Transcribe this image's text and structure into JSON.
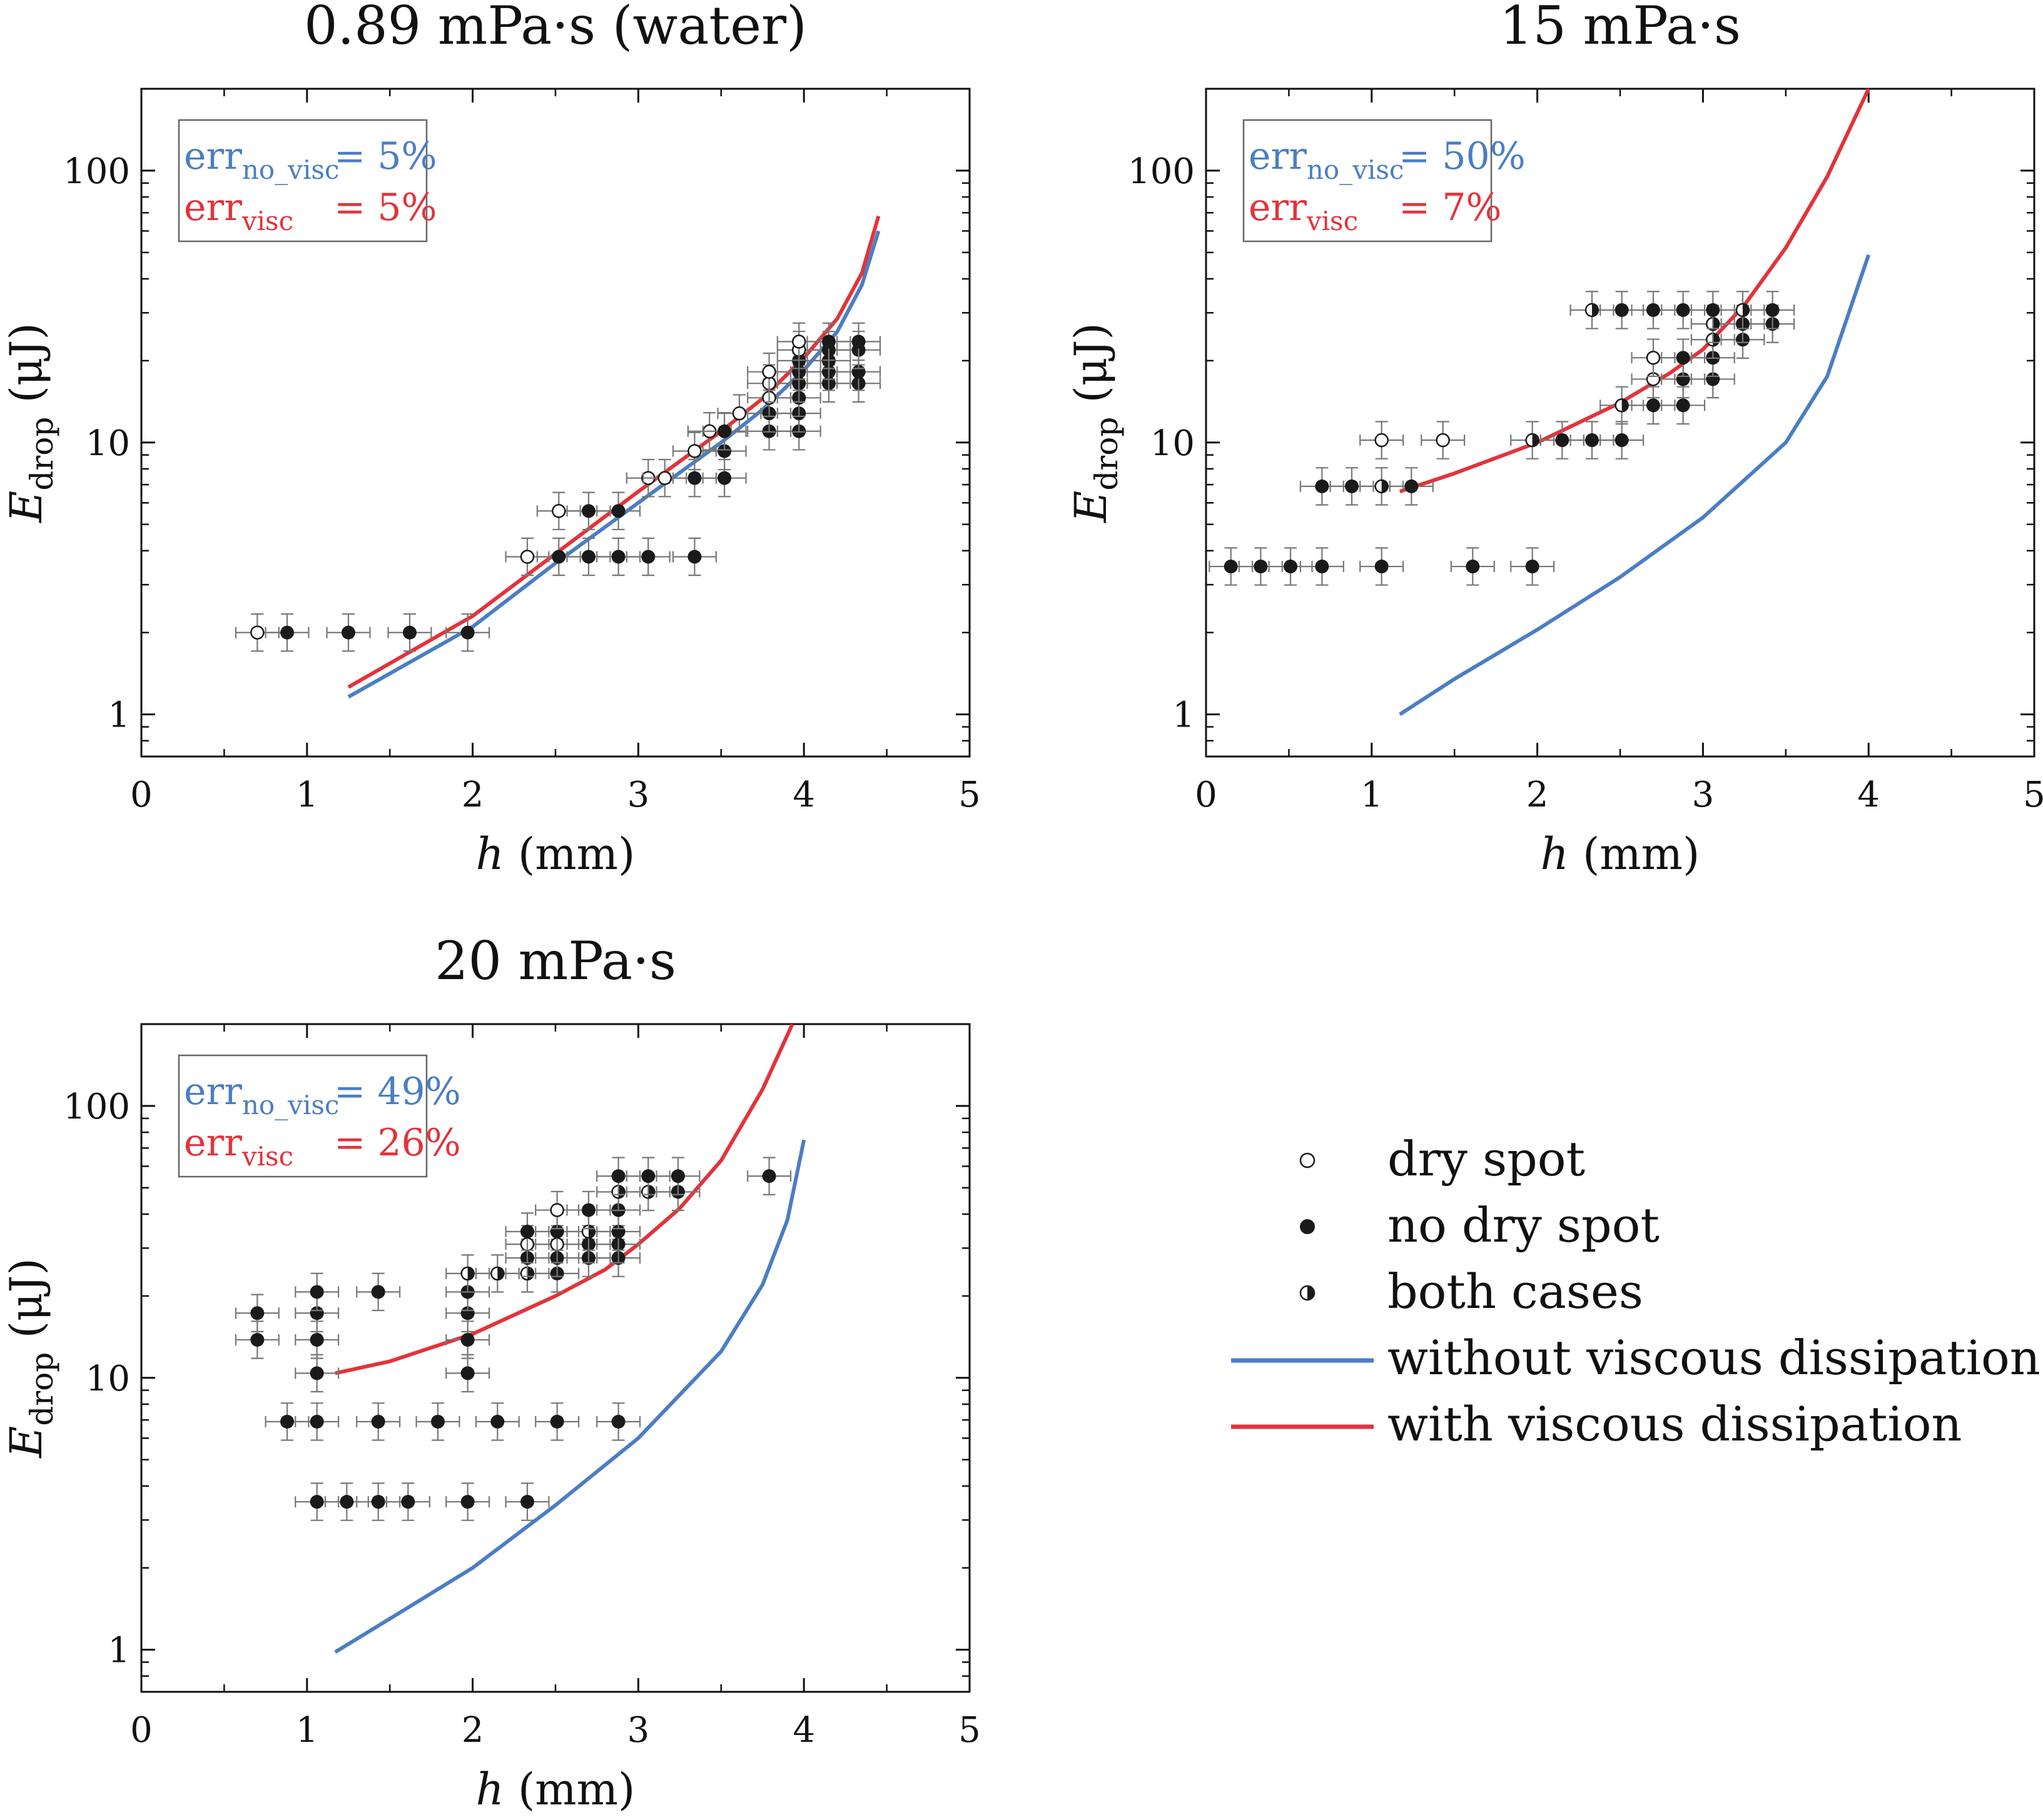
{
  "colors": {
    "blue": "#4a7ec4",
    "red": "#e3333b",
    "marker": "#1a1a1a",
    "errorbar": "#777777"
  },
  "chart_data": [
    {
      "type": "scatter",
      "title": "0.89 mPa·s (water)",
      "xlabel": {
        "main": "h",
        "unit": " (mm)"
      },
      "ylabel": {
        "main": "E",
        "sub": "drop",
        "unit": " (μJ)"
      },
      "xlim": [
        0,
        5
      ],
      "ylim": [
        0.7,
        200
      ],
      "yscale": "log",
      "xticks": [
        "0",
        "1",
        "2",
        "3",
        "4",
        "5"
      ],
      "yticks": [
        "1",
        "10",
        "100"
      ],
      "err_box": [
        {
          "base": "err",
          "sub": "no_visc",
          "value": "= 5%",
          "color": "blue"
        },
        {
          "base": "err",
          "sub": "visc",
          "value": "= 5%",
          "color": "red"
        }
      ],
      "curves": {
        "no_visc": {
          "x": [
            1.25,
            2.0,
            2.5,
            3.0,
            3.5,
            3.75,
            4.0,
            4.2,
            4.35,
            4.45
          ],
          "y": [
            1.16,
            2.1,
            3.6,
            6.0,
            10.0,
            13.2,
            18.5,
            25.5,
            38,
            60
          ]
        },
        "visc": {
          "x": [
            1.25,
            2.0,
            2.5,
            3.0,
            3.5,
            3.75,
            4.0,
            4.2,
            4.35,
            4.45
          ],
          "y": [
            1.26,
            2.3,
            3.9,
            6.6,
            11.0,
            14.5,
            20.5,
            28.5,
            42,
            68
          ]
        }
      },
      "points": [
        {
          "x": 0.7,
          "y": 2.0,
          "kind": "dry"
        },
        {
          "x": 0.88,
          "y": 2.0,
          "kind": "nodry"
        },
        {
          "x": 1.25,
          "y": 2.0,
          "kind": "nodry"
        },
        {
          "x": 1.62,
          "y": 2.0,
          "kind": "nodry"
        },
        {
          "x": 1.97,
          "y": 2.0,
          "kind": "nodry"
        },
        {
          "x": 2.33,
          "y": 3.8,
          "kind": "dry"
        },
        {
          "x": 2.52,
          "y": 3.8,
          "kind": "nodry"
        },
        {
          "x": 2.7,
          "y": 3.8,
          "kind": "nodry"
        },
        {
          "x": 2.88,
          "y": 3.8,
          "kind": "nodry"
        },
        {
          "x": 3.06,
          "y": 3.8,
          "kind": "nodry"
        },
        {
          "x": 3.34,
          "y": 3.8,
          "kind": "nodry"
        },
        {
          "x": 2.52,
          "y": 5.6,
          "kind": "dry"
        },
        {
          "x": 2.7,
          "y": 5.6,
          "kind": "nodry"
        },
        {
          "x": 2.88,
          "y": 5.6,
          "kind": "nodry"
        },
        {
          "x": 3.06,
          "y": 7.4,
          "kind": "dry"
        },
        {
          "x": 3.16,
          "y": 7.4,
          "kind": "dry"
        },
        {
          "x": 3.34,
          "y": 7.4,
          "kind": "nodry"
        },
        {
          "x": 3.52,
          "y": 7.4,
          "kind": "nodry"
        },
        {
          "x": 3.34,
          "y": 9.3,
          "kind": "dry"
        },
        {
          "x": 3.52,
          "y": 9.3,
          "kind": "nodry"
        },
        {
          "x": 3.43,
          "y": 11.0,
          "kind": "dry"
        },
        {
          "x": 3.52,
          "y": 11.0,
          "kind": "nodry"
        },
        {
          "x": 3.79,
          "y": 11.0,
          "kind": "nodry"
        },
        {
          "x": 3.97,
          "y": 11.0,
          "kind": "nodry"
        },
        {
          "x": 3.61,
          "y": 12.8,
          "kind": "dry"
        },
        {
          "x": 3.79,
          "y": 12.8,
          "kind": "nodry"
        },
        {
          "x": 3.97,
          "y": 12.8,
          "kind": "nodry"
        },
        {
          "x": 3.79,
          "y": 14.6,
          "kind": "dry"
        },
        {
          "x": 3.97,
          "y": 14.6,
          "kind": "nodry"
        },
        {
          "x": 3.79,
          "y": 16.5,
          "kind": "dry"
        },
        {
          "x": 3.97,
          "y": 16.5,
          "kind": "nodry"
        },
        {
          "x": 4.15,
          "y": 16.5,
          "kind": "nodry"
        },
        {
          "x": 4.33,
          "y": 16.5,
          "kind": "nodry"
        },
        {
          "x": 3.79,
          "y": 18.2,
          "kind": "dry"
        },
        {
          "x": 3.97,
          "y": 18.2,
          "kind": "nodry"
        },
        {
          "x": 4.15,
          "y": 18.2,
          "kind": "nodry"
        },
        {
          "x": 4.33,
          "y": 18.2,
          "kind": "nodry"
        },
        {
          "x": 3.97,
          "y": 20.0,
          "kind": "nodry"
        },
        {
          "x": 4.15,
          "y": 20.0,
          "kind": "nodry"
        },
        {
          "x": 3.97,
          "y": 21.9,
          "kind": "dry"
        },
        {
          "x": 4.15,
          "y": 21.9,
          "kind": "nodry"
        },
        {
          "x": 4.33,
          "y": 21.9,
          "kind": "nodry"
        },
        {
          "x": 3.97,
          "y": 23.5,
          "kind": "dry"
        },
        {
          "x": 4.15,
          "y": 23.5,
          "kind": "nodry"
        },
        {
          "x": 4.33,
          "y": 23.5,
          "kind": "nodry"
        }
      ]
    },
    {
      "type": "scatter",
      "title": "15 mPa·s",
      "xlabel": {
        "main": "h",
        "unit": " (mm)"
      },
      "ylabel": {
        "main": "E",
        "sub": "drop",
        "unit": " (μJ)"
      },
      "xlim": [
        0,
        5
      ],
      "ylim": [
        0.7,
        200
      ],
      "yscale": "log",
      "xticks": [
        "0",
        "1",
        "2",
        "3",
        "4",
        "5"
      ],
      "yticks": [
        "1",
        "10",
        "100"
      ],
      "err_box": [
        {
          "base": "err",
          "sub": "no_visc",
          "value": "= 50%",
          "color": "blue"
        },
        {
          "base": "err",
          "sub": "visc",
          "value": "= 7%",
          "color": "red"
        }
      ],
      "curves": {
        "no_visc": {
          "x": [
            1.17,
            1.5,
            2.0,
            2.5,
            3.0,
            3.5,
            3.75,
            4.0
          ],
          "y": [
            1.0,
            1.35,
            2.05,
            3.2,
            5.3,
            10.0,
            17.5,
            49
          ]
        },
        "visc": {
          "x": [
            1.17,
            1.5,
            2.0,
            2.5,
            2.8,
            3.0,
            3.25,
            3.5,
            3.75,
            4.0
          ],
          "y": [
            6.6,
            7.7,
            10.0,
            14.0,
            18.0,
            22.0,
            32.0,
            52.0,
            95.0,
            200
          ]
        }
      },
      "points": [
        {
          "x": 0.15,
          "y": 3.5,
          "kind": "nodry"
        },
        {
          "x": 0.33,
          "y": 3.5,
          "kind": "nodry"
        },
        {
          "x": 0.51,
          "y": 3.5,
          "kind": "nodry"
        },
        {
          "x": 0.7,
          "y": 3.5,
          "kind": "nodry"
        },
        {
          "x": 1.06,
          "y": 3.5,
          "kind": "nodry"
        },
        {
          "x": 1.61,
          "y": 3.5,
          "kind": "nodry"
        },
        {
          "x": 1.97,
          "y": 3.5,
          "kind": "nodry"
        },
        {
          "x": 0.7,
          "y": 6.9,
          "kind": "nodry"
        },
        {
          "x": 0.88,
          "y": 6.9,
          "kind": "nodry"
        },
        {
          "x": 1.06,
          "y": 6.9,
          "kind": "both"
        },
        {
          "x": 1.24,
          "y": 6.9,
          "kind": "nodry"
        },
        {
          "x": 1.06,
          "y": 10.2,
          "kind": "dry"
        },
        {
          "x": 1.43,
          "y": 10.2,
          "kind": "dry"
        },
        {
          "x": 1.97,
          "y": 10.2,
          "kind": "both"
        },
        {
          "x": 2.15,
          "y": 10.2,
          "kind": "nodry"
        },
        {
          "x": 2.33,
          "y": 10.2,
          "kind": "nodry"
        },
        {
          "x": 2.51,
          "y": 10.2,
          "kind": "nodry"
        },
        {
          "x": 2.51,
          "y": 13.7,
          "kind": "both"
        },
        {
          "x": 2.7,
          "y": 13.7,
          "kind": "nodry"
        },
        {
          "x": 2.88,
          "y": 13.7,
          "kind": "nodry"
        },
        {
          "x": 2.7,
          "y": 17.1,
          "kind": "dry"
        },
        {
          "x": 2.88,
          "y": 17.1,
          "kind": "nodry"
        },
        {
          "x": 3.06,
          "y": 17.1,
          "kind": "nodry"
        },
        {
          "x": 2.7,
          "y": 20.5,
          "kind": "dry"
        },
        {
          "x": 2.88,
          "y": 20.5,
          "kind": "nodry"
        },
        {
          "x": 3.06,
          "y": 20.5,
          "kind": "nodry"
        },
        {
          "x": 3.06,
          "y": 23.9,
          "kind": "both"
        },
        {
          "x": 3.24,
          "y": 23.9,
          "kind": "nodry"
        },
        {
          "x": 3.06,
          "y": 27.3,
          "kind": "both"
        },
        {
          "x": 3.24,
          "y": 27.3,
          "kind": "nodry"
        },
        {
          "x": 3.42,
          "y": 27.3,
          "kind": "nodry"
        },
        {
          "x": 2.33,
          "y": 30.7,
          "kind": "both"
        },
        {
          "x": 2.51,
          "y": 30.7,
          "kind": "nodry"
        },
        {
          "x": 2.7,
          "y": 30.7,
          "kind": "nodry"
        },
        {
          "x": 2.88,
          "y": 30.7,
          "kind": "nodry"
        },
        {
          "x": 3.06,
          "y": 30.7,
          "kind": "nodry"
        },
        {
          "x": 3.24,
          "y": 30.7,
          "kind": "both"
        },
        {
          "x": 3.42,
          "y": 30.7,
          "kind": "nodry"
        }
      ]
    },
    {
      "type": "scatter",
      "title": "20 mPa·s",
      "xlabel": {
        "main": "h",
        "unit": " (mm)"
      },
      "ylabel": {
        "main": "E",
        "sub": "drop",
        "unit": " (μJ)"
      },
      "xlim": [
        0,
        5
      ],
      "ylim": [
        0.7,
        200
      ],
      "yscale": "log",
      "xticks": [
        "0",
        "1",
        "2",
        "3",
        "4",
        "5"
      ],
      "yticks": [
        "1",
        "10",
        "100"
      ],
      "err_box": [
        {
          "base": "err",
          "sub": "no_visc",
          "value": "= 49%",
          "color": "blue"
        },
        {
          "base": "err",
          "sub": "visc",
          "value": "= 26%",
          "color": "red"
        }
      ],
      "curves": {
        "no_visc": {
          "x": [
            1.17,
            1.5,
            2.0,
            2.5,
            3.0,
            3.5,
            3.75,
            3.9,
            4.0
          ],
          "y": [
            0.98,
            1.3,
            2.0,
            3.4,
            6.0,
            12.5,
            22.0,
            38.0,
            75.0
          ]
        },
        "visc": {
          "x": [
            1.17,
            1.5,
            2.0,
            2.5,
            2.8,
            3.0,
            3.25,
            3.5,
            3.75,
            3.93
          ],
          "y": [
            10.4,
            11.5,
            14.5,
            20.0,
            25.0,
            31.0,
            42.0,
            63.0,
            115.0,
            200
          ]
        }
      },
      "points": [
        {
          "x": 1.06,
          "y": 3.5,
          "kind": "nodry"
        },
        {
          "x": 1.24,
          "y": 3.5,
          "kind": "nodry"
        },
        {
          "x": 1.43,
          "y": 3.5,
          "kind": "nodry"
        },
        {
          "x": 1.61,
          "y": 3.5,
          "kind": "nodry"
        },
        {
          "x": 1.97,
          "y": 3.5,
          "kind": "nodry"
        },
        {
          "x": 2.33,
          "y": 3.5,
          "kind": "nodry"
        },
        {
          "x": 0.88,
          "y": 6.9,
          "kind": "nodry"
        },
        {
          "x": 1.06,
          "y": 6.9,
          "kind": "nodry"
        },
        {
          "x": 1.43,
          "y": 6.9,
          "kind": "nodry"
        },
        {
          "x": 1.79,
          "y": 6.9,
          "kind": "nodry"
        },
        {
          "x": 2.15,
          "y": 6.9,
          "kind": "nodry"
        },
        {
          "x": 2.51,
          "y": 6.9,
          "kind": "nodry"
        },
        {
          "x": 2.88,
          "y": 6.9,
          "kind": "nodry"
        },
        {
          "x": 1.06,
          "y": 10.4,
          "kind": "nodry"
        },
        {
          "x": 1.97,
          "y": 10.4,
          "kind": "nodry"
        },
        {
          "x": 0.7,
          "y": 13.8,
          "kind": "nodry"
        },
        {
          "x": 1.06,
          "y": 13.8,
          "kind": "nodry"
        },
        {
          "x": 1.97,
          "y": 13.8,
          "kind": "nodry"
        },
        {
          "x": 0.7,
          "y": 17.3,
          "kind": "nodry"
        },
        {
          "x": 1.06,
          "y": 17.3,
          "kind": "nodry"
        },
        {
          "x": 1.97,
          "y": 17.3,
          "kind": "nodry"
        },
        {
          "x": 1.06,
          "y": 20.7,
          "kind": "nodry"
        },
        {
          "x": 1.43,
          "y": 20.7,
          "kind": "nodry"
        },
        {
          "x": 1.97,
          "y": 20.7,
          "kind": "nodry"
        },
        {
          "x": 1.97,
          "y": 24.2,
          "kind": "both"
        },
        {
          "x": 2.15,
          "y": 24.2,
          "kind": "both"
        },
        {
          "x": 2.33,
          "y": 24.2,
          "kind": "both"
        },
        {
          "x": 2.51,
          "y": 24.2,
          "kind": "nodry"
        },
        {
          "x": 2.33,
          "y": 27.6,
          "kind": "nodry"
        },
        {
          "x": 2.51,
          "y": 27.6,
          "kind": "nodry"
        },
        {
          "x": 2.7,
          "y": 27.6,
          "kind": "nodry"
        },
        {
          "x": 2.88,
          "y": 27.6,
          "kind": "nodry"
        },
        {
          "x": 2.33,
          "y": 31.0,
          "kind": "dry"
        },
        {
          "x": 2.51,
          "y": 31.0,
          "kind": "dry"
        },
        {
          "x": 2.7,
          "y": 31.0,
          "kind": "nodry"
        },
        {
          "x": 2.88,
          "y": 31.0,
          "kind": "nodry"
        },
        {
          "x": 2.33,
          "y": 34.5,
          "kind": "nodry"
        },
        {
          "x": 2.51,
          "y": 34.5,
          "kind": "nodry"
        },
        {
          "x": 2.7,
          "y": 34.5,
          "kind": "both"
        },
        {
          "x": 2.88,
          "y": 34.5,
          "kind": "nodry"
        },
        {
          "x": 2.51,
          "y": 41.4,
          "kind": "dry"
        },
        {
          "x": 2.7,
          "y": 41.4,
          "kind": "nodry"
        },
        {
          "x": 2.88,
          "y": 41.4,
          "kind": "nodry"
        },
        {
          "x": 2.88,
          "y": 48.3,
          "kind": "both"
        },
        {
          "x": 3.06,
          "y": 48.3,
          "kind": "both"
        },
        {
          "x": 3.24,
          "y": 48.3,
          "kind": "nodry"
        },
        {
          "x": 2.88,
          "y": 55.2,
          "kind": "nodry"
        },
        {
          "x": 3.06,
          "y": 55.2,
          "kind": "nodry"
        },
        {
          "x": 3.24,
          "y": 55.2,
          "kind": "nodry"
        },
        {
          "x": 3.79,
          "y": 55.2,
          "kind": "nodry"
        }
      ]
    }
  ],
  "legend": [
    {
      "label": "dry spot",
      "kind": "dry"
    },
    {
      "label": "no dry spot",
      "kind": "nodry"
    },
    {
      "label": "both cases",
      "kind": "both"
    },
    {
      "label": "without viscous dissipation",
      "kind": "line",
      "color": "blue"
    },
    {
      "label": "with viscous dissipation",
      "kind": "line",
      "color": "red"
    }
  ]
}
